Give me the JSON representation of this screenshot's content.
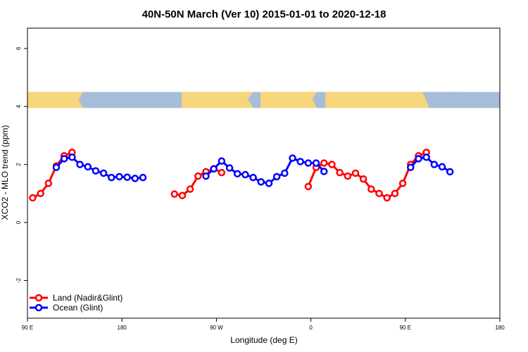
{
  "chart_data": {
    "type": "line",
    "title": "40N-50N March (Ver 10)   2015-01-01 to 2020-12-18",
    "xlabel": "Longitude (deg E)",
    "ylabel": "XCO2 - MLO trend (ppm)",
    "xlim": [
      90,
      450
    ],
    "ylim": [
      -3.3,
      6.7
    ],
    "x_ticks": [
      {
        "value": 90,
        "label": "90 E"
      },
      {
        "value": 180,
        "label": "180"
      },
      {
        "value": 270,
        "label": "90 W"
      },
      {
        "value": 360,
        "label": "0"
      },
      {
        "value": 450,
        "label": "90 E"
      },
      {
        "value": 540,
        "label": "180"
      }
    ],
    "y_ticks": [
      {
        "value": -2,
        "label": "-2"
      },
      {
        "value": 0,
        "label": "0"
      },
      {
        "value": 2,
        "label": "2"
      },
      {
        "value": 4,
        "label": "4"
      },
      {
        "value": 6,
        "label": "6"
      }
    ],
    "legend_position": "bottom-left",
    "map_strip": {
      "y_bottom": 3.95,
      "y_top": 4.5,
      "land_color": "#f5d67a",
      "ocean_color": "#a7bcd9"
    },
    "series": [
      {
        "name": "Land (Nadir&Glint)",
        "color": "#ff0000",
        "segments": [
          [
            [
              95,
              0.85
            ],
            [
              102.5,
              1.0
            ],
            [
              110,
              1.35
            ],
            [
              117.5,
              1.95
            ],
            [
              125,
              2.3
            ],
            [
              132.5,
              2.42
            ]
          ],
          [
            [
              230,
              0.98
            ],
            [
              237.5,
              0.93
            ],
            [
              245,
              1.15
            ],
            [
              252.5,
              1.6
            ],
            [
              260,
              1.75
            ],
            [
              267.5,
              1.85
            ],
            [
              275,
              1.72
            ]
          ],
          [
            [
              357.5,
              1.24
            ],
            [
              365,
              1.9
            ],
            [
              372.5,
              2.05
            ],
            [
              380,
              2.0
            ],
            [
              387.5,
              1.72
            ],
            [
              395,
              1.6
            ],
            [
              402.5,
              1.7
            ],
            [
              410,
              1.5
            ],
            [
              417.5,
              1.15
            ],
            [
              425,
              1.0
            ],
            [
              432.5,
              0.85
            ],
            [
              440,
              1.0
            ],
            [
              447.5,
              1.35
            ],
            [
              455,
              2.0
            ],
            [
              462.5,
              2.3
            ],
            [
              470,
              2.42
            ]
          ]
        ]
      },
      {
        "name": "Ocean (Glint)",
        "color": "#0000ff",
        "segments": [
          [
            [
              117.5,
              1.9
            ],
            [
              125,
              2.2
            ],
            [
              132.5,
              2.25
            ],
            [
              140,
              2.0
            ],
            [
              147.5,
              1.92
            ],
            [
              155,
              1.78
            ],
            [
              162.5,
              1.7
            ],
            [
              170,
              1.55
            ],
            [
              177.5,
              1.58
            ],
            [
              185,
              1.56
            ],
            [
              192.5,
              1.52
            ],
            [
              200,
              1.55
            ]
          ],
          [
            [
              260,
              1.6
            ],
            [
              267.5,
              1.85
            ],
            [
              275,
              2.12
            ],
            [
              282.5,
              1.88
            ],
            [
              290,
              1.68
            ],
            [
              297.5,
              1.65
            ],
            [
              305,
              1.55
            ],
            [
              312.5,
              1.4
            ],
            [
              320,
              1.35
            ],
            [
              327.5,
              1.58
            ],
            [
              335,
              1.7
            ],
            [
              342.5,
              2.22
            ],
            [
              350,
              2.1
            ],
            [
              357.5,
              2.05
            ],
            [
              365,
              2.05
            ],
            [
              372.5,
              1.76
            ]
          ],
          [
            [
              455,
              1.9
            ],
            [
              462.5,
              2.2
            ],
            [
              470,
              2.25
            ],
            [
              477.5,
              2.0
            ],
            [
              485,
              1.92
            ],
            [
              492.5,
              1.75
            ]
          ]
        ]
      }
    ]
  }
}
